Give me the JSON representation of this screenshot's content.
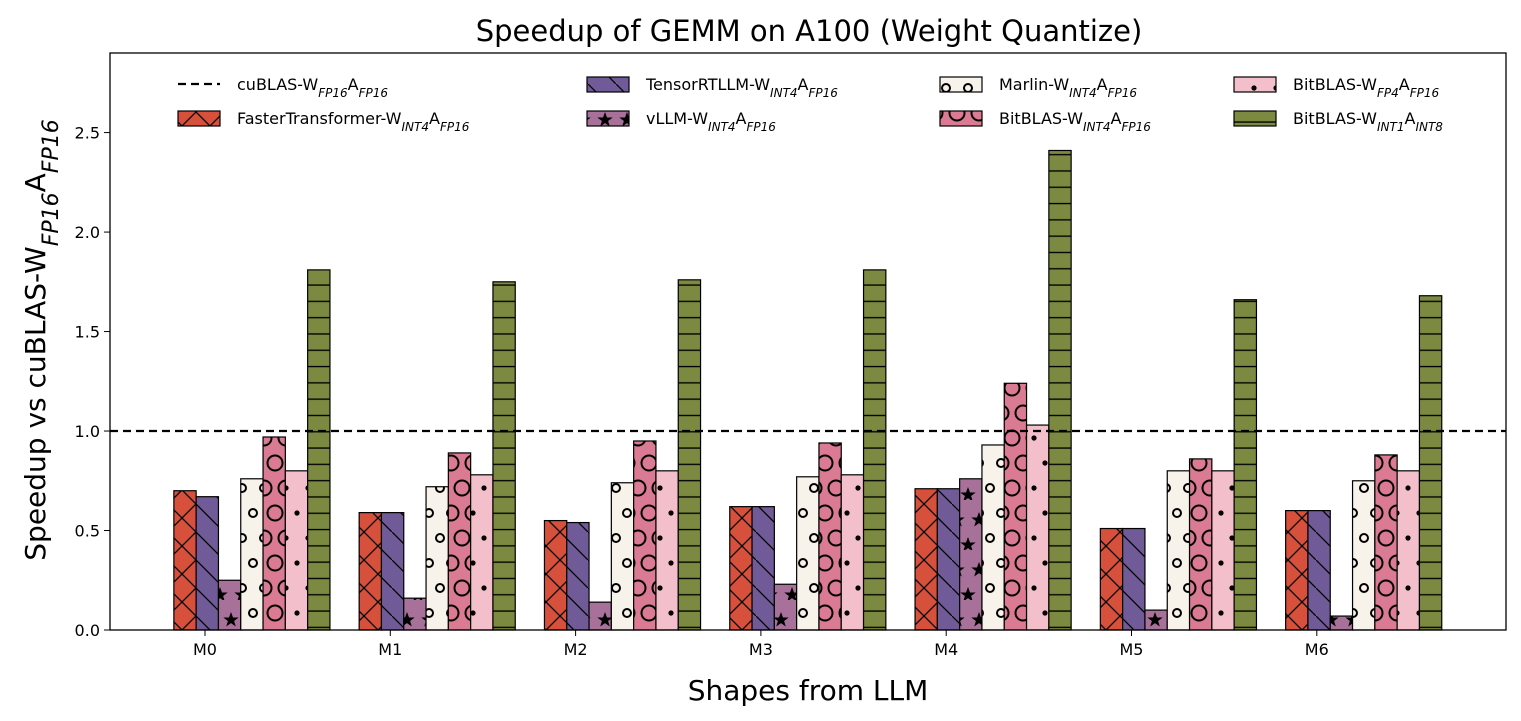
{
  "chart_data": {
    "type": "bar",
    "title": "Speedup of GEMM on A100 (Weight Quantize)",
    "xlabel": "Shapes from LLM",
    "ylabel": {
      "parts": [
        {
          "text": "Speedup vs cuBLAS-W"
        },
        {
          "text": "FP16",
          "sub": true
        },
        {
          "text": "A"
        },
        {
          "text": "FP16",
          "sub": true
        }
      ]
    },
    "categories": [
      "M0",
      "M1",
      "M2",
      "M3",
      "M4",
      "M5",
      "M6"
    ],
    "ylim": [
      0,
      2.9
    ],
    "yticks": [
      "0.0",
      "0.5",
      "1.0",
      "1.5",
      "2.0",
      "2.5"
    ],
    "grid": false,
    "legend_position": "top",
    "baseline": {
      "value": 1.0,
      "style": "dashed",
      "label": [
        {
          "text": "cuBLAS-W"
        },
        {
          "text": "FP16",
          "sub": true
        },
        {
          "text": "A"
        },
        {
          "text": "FP16",
          "sub": true
        }
      ]
    },
    "series": [
      {
        "name": [
          {
            "text": "FasterTransformer-W"
          },
          {
            "text": "INT4",
            "sub": true
          },
          {
            "text": "A"
          },
          {
            "text": "FP16",
            "sub": true
          }
        ],
        "color": "#d6503b",
        "hatch": "cross",
        "values": [
          0.7,
          0.59,
          0.55,
          0.62,
          0.71,
          0.51,
          0.6
        ]
      },
      {
        "name": [
          {
            "text": "TensorRTLLM-W"
          },
          {
            "text": "INT4",
            "sub": true
          },
          {
            "text": "A"
          },
          {
            "text": "FP16",
            "sub": true
          }
        ],
        "color": "#705a98",
        "hatch": "backslash",
        "values": [
          0.67,
          0.59,
          0.54,
          0.62,
          0.71,
          0.51,
          0.6
        ]
      },
      {
        "name": [
          {
            "text": "vLLM-W"
          },
          {
            "text": "INT4",
            "sub": true
          },
          {
            "text": "A"
          },
          {
            "text": "FP16",
            "sub": true
          }
        ],
        "color": "#a77199",
        "hatch": "star",
        "values": [
          0.25,
          0.16,
          0.14,
          0.23,
          0.76,
          0.1,
          0.07
        ]
      },
      {
        "name": [
          {
            "text": "Marlin-W"
          },
          {
            "text": "INT4",
            "sub": true
          },
          {
            "text": "A"
          },
          {
            "text": "FP16",
            "sub": true
          }
        ],
        "color": "#f8f3ea",
        "hatch": "small-circle",
        "values": [
          0.76,
          0.72,
          0.74,
          0.77,
          0.93,
          0.8,
          0.75
        ]
      },
      {
        "name": [
          {
            "text": "BitBLAS-W"
          },
          {
            "text": "INT4",
            "sub": true
          },
          {
            "text": "A"
          },
          {
            "text": "FP16",
            "sub": true
          }
        ],
        "color": "#db7a93",
        "hatch": "big-circle",
        "values": [
          0.97,
          0.89,
          0.95,
          0.94,
          1.24,
          0.86,
          0.88
        ]
      },
      {
        "name": [
          {
            "text": "BitBLAS-W"
          },
          {
            "text": "FP4",
            "sub": true
          },
          {
            "text": "A"
          },
          {
            "text": "FP16",
            "sub": true
          }
        ],
        "color": "#f3bfca",
        "hatch": "dot",
        "values": [
          0.8,
          0.78,
          0.8,
          0.78,
          1.03,
          0.8,
          0.8
        ]
      },
      {
        "name": [
          {
            "text": "BitBLAS-W"
          },
          {
            "text": "INT1",
            "sub": true
          },
          {
            "text": "A"
          },
          {
            "text": "INT8",
            "sub": true
          }
        ],
        "color": "#7c8a41",
        "hatch": "horizontal",
        "values": [
          1.81,
          1.75,
          1.76,
          1.81,
          2.41,
          1.66,
          1.68
        ]
      }
    ]
  }
}
